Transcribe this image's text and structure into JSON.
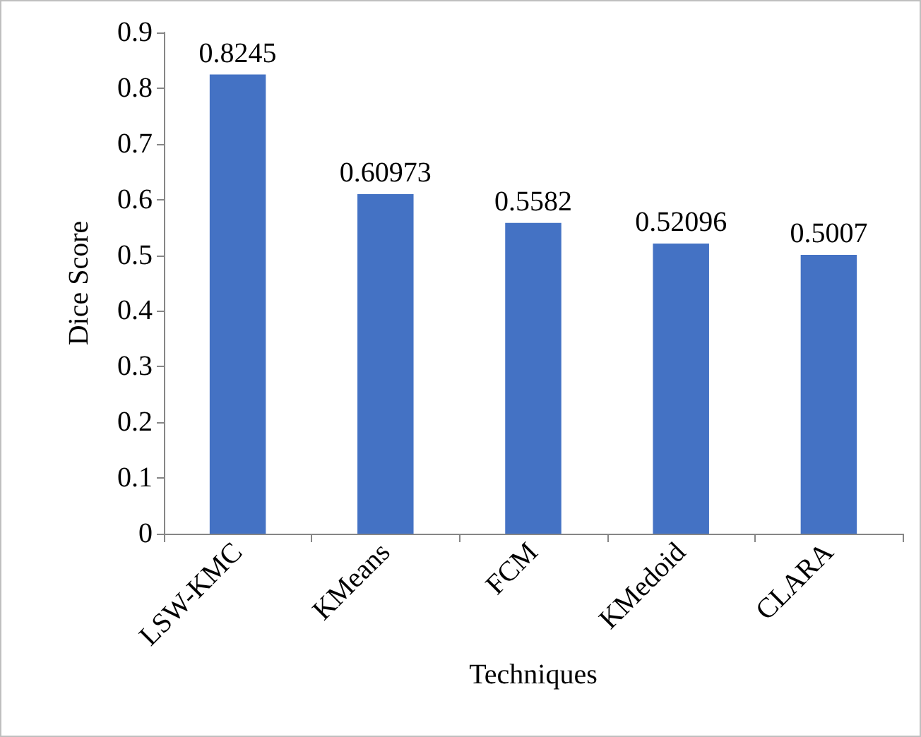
{
  "chart_data": {
    "type": "bar",
    "xlabel": "Techniques",
    "ylabel": "Dice Score",
    "categories": [
      "LSW-KMC",
      "KMeans",
      "FCM",
      "KMedoid",
      "CLARA"
    ],
    "values": [
      0.8245,
      0.60973,
      0.5582,
      0.52096,
      0.5007
    ],
    "color": "#4472c4",
    "ylim": [
      0,
      0.9
    ],
    "yticks": [
      0,
      0.1,
      0.2,
      0.3,
      0.4,
      0.5,
      0.6,
      0.7,
      0.8,
      0.9
    ],
    "data_labels": true
  }
}
